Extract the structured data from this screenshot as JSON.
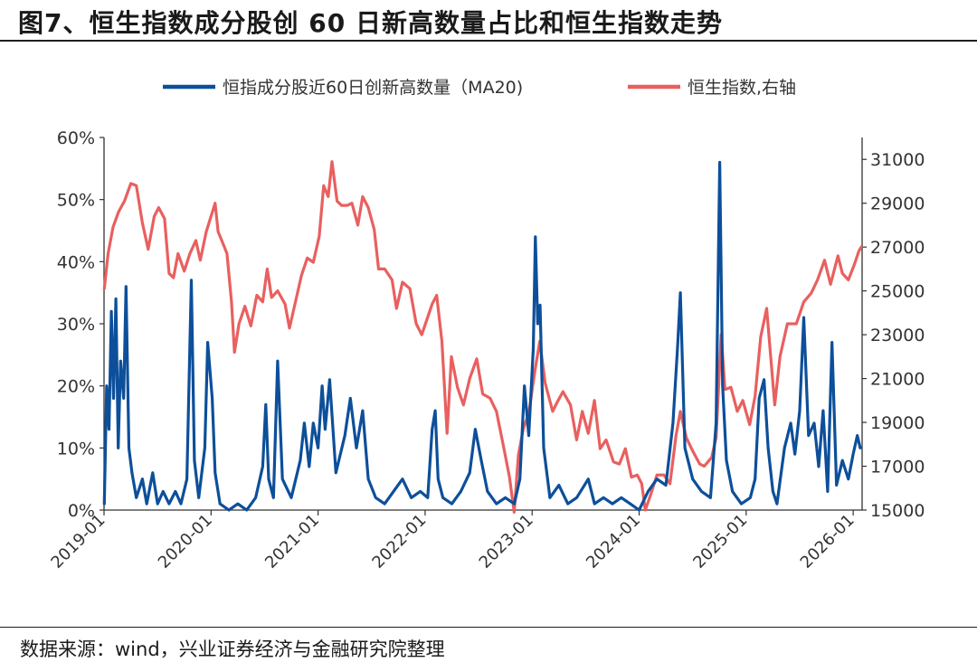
{
  "title": "图7、恒生指数成分股创 60 日新高数量占比和恒生指数走势",
  "source": "数据来源：wind，兴业证券经济与金融研究院整理",
  "colors": {
    "series1": "#0d4f9a",
    "series2": "#e8605f",
    "axis": "#333333"
  },
  "chart_data": {
    "type": "line",
    "legend_position": "top-center",
    "grid": false,
    "x_range": [
      "2019-01",
      "2026-02"
    ],
    "x_ticks": [
      "2019-01",
      "2020-01",
      "2021-01",
      "2022-01",
      "2023-01",
      "2024-01",
      "2025-01",
      "2026-01"
    ],
    "y_left": {
      "ylim": [
        0,
        60
      ],
      "ticks": [
        "0%",
        "10%",
        "20%",
        "30%",
        "40%",
        "50%",
        "60%"
      ]
    },
    "y_right": {
      "ylim": [
        15000,
        32000
      ],
      "ticks": [
        "15000",
        "17000",
        "19000",
        "21000",
        "23000",
        "25000",
        "27000",
        "29000",
        "31000"
      ]
    },
    "series": [
      {
        "name": "恒指成分股近60日创新高数量（MA20)",
        "axis": "left",
        "points": [
          [
            "2019-01-02",
            1
          ],
          [
            "2019-01-10",
            20
          ],
          [
            "2019-01-18",
            13
          ],
          [
            "2019-01-26",
            32
          ],
          [
            "2019-02-03",
            18
          ],
          [
            "2019-02-11",
            34
          ],
          [
            "2019-02-19",
            10
          ],
          [
            "2019-02-27",
            24
          ],
          [
            "2019-03-07",
            18
          ],
          [
            "2019-03-15",
            36
          ],
          [
            "2019-03-25",
            10
          ],
          [
            "2019-04-05",
            6
          ],
          [
            "2019-04-20",
            2
          ],
          [
            "2019-05-10",
            5
          ],
          [
            "2019-05-25",
            1
          ],
          [
            "2019-06-15",
            6
          ],
          [
            "2019-07-01",
            1
          ],
          [
            "2019-07-20",
            3
          ],
          [
            "2019-08-10",
            1
          ],
          [
            "2019-09-01",
            3
          ],
          [
            "2019-09-20",
            1
          ],
          [
            "2019-10-10",
            5
          ],
          [
            "2019-10-25",
            37
          ],
          [
            "2019-11-05",
            8
          ],
          [
            "2019-11-20",
            2
          ],
          [
            "2019-12-10",
            10
          ],
          [
            "2019-12-20",
            27
          ],
          [
            "2020-01-05",
            18
          ],
          [
            "2020-01-15",
            6
          ],
          [
            "2020-02-01",
            1
          ],
          [
            "2020-03-01",
            0
          ],
          [
            "2020-04-01",
            1
          ],
          [
            "2020-05-01",
            0
          ],
          [
            "2020-06-01",
            2
          ],
          [
            "2020-06-25",
            7
          ],
          [
            "2020-07-05",
            17
          ],
          [
            "2020-07-15",
            5
          ],
          [
            "2020-08-01",
            2
          ],
          [
            "2020-08-15",
            24
          ],
          [
            "2020-09-01",
            5
          ],
          [
            "2020-10-01",
            2
          ],
          [
            "2020-11-01",
            8
          ],
          [
            "2020-11-15",
            14
          ],
          [
            "2020-12-01",
            7
          ],
          [
            "2020-12-15",
            14
          ],
          [
            "2021-01-01",
            10
          ],
          [
            "2021-01-15",
            20
          ],
          [
            "2021-01-25",
            13
          ],
          [
            "2021-02-10",
            21
          ],
          [
            "2021-03-01",
            6
          ],
          [
            "2021-04-01",
            12
          ],
          [
            "2021-04-20",
            18
          ],
          [
            "2021-05-10",
            10
          ],
          [
            "2021-06-01",
            16
          ],
          [
            "2021-06-20",
            5
          ],
          [
            "2021-07-15",
            2
          ],
          [
            "2021-08-15",
            1
          ],
          [
            "2021-09-15",
            3
          ],
          [
            "2021-10-15",
            5
          ],
          [
            "2021-11-15",
            2
          ],
          [
            "2021-12-15",
            3
          ],
          [
            "2022-01-10",
            2
          ],
          [
            "2022-01-25",
            13
          ],
          [
            "2022-02-05",
            16
          ],
          [
            "2022-02-15",
            5
          ],
          [
            "2022-03-01",
            2
          ],
          [
            "2022-04-01",
            1
          ],
          [
            "2022-05-01",
            3
          ],
          [
            "2022-06-01",
            6
          ],
          [
            "2022-06-20",
            13
          ],
          [
            "2022-07-10",
            8
          ],
          [
            "2022-08-01",
            3
          ],
          [
            "2022-09-01",
            1
          ],
          [
            "2022-10-01",
            2
          ],
          [
            "2022-11-01",
            1
          ],
          [
            "2022-11-20",
            5
          ],
          [
            "2022-12-05",
            20
          ],
          [
            "2022-12-20",
            12
          ],
          [
            "2023-01-05",
            26
          ],
          [
            "2023-01-12",
            44
          ],
          [
            "2023-01-20",
            30
          ],
          [
            "2023-01-28",
            33
          ],
          [
            "2023-02-10",
            10
          ],
          [
            "2023-03-01",
            2
          ],
          [
            "2023-04-01",
            4
          ],
          [
            "2023-05-01",
            1
          ],
          [
            "2023-06-01",
            2
          ],
          [
            "2023-07-10",
            5
          ],
          [
            "2023-08-01",
            1
          ],
          [
            "2023-09-01",
            2
          ],
          [
            "2023-10-01",
            1
          ],
          [
            "2023-11-01",
            2
          ],
          [
            "2023-12-01",
            1
          ],
          [
            "2024-01-01",
            0
          ],
          [
            "2024-02-01",
            3
          ],
          [
            "2024-03-01",
            5
          ],
          [
            "2024-04-01",
            4
          ],
          [
            "2024-04-25",
            14
          ],
          [
            "2024-05-10",
            26
          ],
          [
            "2024-05-20",
            35
          ],
          [
            "2024-06-05",
            10
          ],
          [
            "2024-07-01",
            5
          ],
          [
            "2024-08-01",
            3
          ],
          [
            "2024-09-01",
            2
          ],
          [
            "2024-09-20",
            14
          ],
          [
            "2024-10-02",
            56
          ],
          [
            "2024-10-12",
            20
          ],
          [
            "2024-10-25",
            8
          ],
          [
            "2024-11-15",
            3
          ],
          [
            "2024-12-15",
            1
          ],
          [
            "2025-01-15",
            2
          ],
          [
            "2025-02-01",
            5
          ],
          [
            "2025-02-15",
            18
          ],
          [
            "2025-03-01",
            21
          ],
          [
            "2025-03-15",
            10
          ],
          [
            "2025-04-01",
            3
          ],
          [
            "2025-04-15",
            1
          ],
          [
            "2025-05-10",
            10
          ],
          [
            "2025-06-01",
            14
          ],
          [
            "2025-06-15",
            9
          ],
          [
            "2025-07-01",
            16
          ],
          [
            "2025-07-15",
            31
          ],
          [
            "2025-08-01",
            12
          ],
          [
            "2025-08-20",
            14
          ],
          [
            "2025-09-05",
            7
          ],
          [
            "2025-09-20",
            16
          ],
          [
            "2025-10-05",
            3
          ],
          [
            "2025-10-20",
            27
          ],
          [
            "2025-11-05",
            4
          ],
          [
            "2025-11-25",
            8
          ],
          [
            "2025-12-15",
            5
          ],
          [
            "2026-01-01",
            9
          ],
          [
            "2026-01-15",
            12
          ],
          [
            "2026-01-25",
            10
          ]
        ]
      },
      {
        "name": "恒生指数,右轴",
        "axis": "right",
        "points": [
          [
            "2019-01-02",
            25100
          ],
          [
            "2019-01-15",
            26700
          ],
          [
            "2019-02-01",
            27900
          ],
          [
            "2019-02-20",
            28600
          ],
          [
            "2019-03-10",
            29100
          ],
          [
            "2019-04-01",
            29900
          ],
          [
            "2019-04-20",
            29800
          ],
          [
            "2019-05-10",
            28100
          ],
          [
            "2019-05-30",
            26900
          ],
          [
            "2019-06-20",
            28400
          ],
          [
            "2019-07-05",
            28800
          ],
          [
            "2019-07-25",
            28300
          ],
          [
            "2019-08-10",
            25800
          ],
          [
            "2019-08-25",
            25600
          ],
          [
            "2019-09-10",
            26700
          ],
          [
            "2019-10-01",
            25900
          ],
          [
            "2019-10-20",
            26700
          ],
          [
            "2019-11-10",
            27300
          ],
          [
            "2019-11-25",
            26400
          ],
          [
            "2019-12-15",
            27700
          ],
          [
            "2020-01-15",
            29000
          ],
          [
            "2020-01-25",
            27700
          ],
          [
            "2020-02-10",
            27200
          ],
          [
            "2020-02-25",
            26700
          ],
          [
            "2020-03-10",
            24500
          ],
          [
            "2020-03-20",
            22200
          ],
          [
            "2020-04-05",
            23500
          ],
          [
            "2020-04-25",
            24300
          ],
          [
            "2020-05-15",
            23400
          ],
          [
            "2020-06-05",
            24800
          ],
          [
            "2020-06-25",
            24500
          ],
          [
            "2020-07-10",
            26000
          ],
          [
            "2020-07-25",
            24700
          ],
          [
            "2020-08-15",
            25000
          ],
          [
            "2020-09-10",
            24400
          ],
          [
            "2020-09-25",
            23300
          ],
          [
            "2020-10-15",
            24500
          ],
          [
            "2020-11-05",
            25700
          ],
          [
            "2020-11-25",
            26500
          ],
          [
            "2020-12-15",
            26300
          ],
          [
            "2021-01-05",
            27500
          ],
          [
            "2021-01-20",
            29800
          ],
          [
            "2021-02-05",
            29300
          ],
          [
            "2021-02-18",
            30900
          ],
          [
            "2021-03-05",
            29100
          ],
          [
            "2021-03-20",
            28900
          ],
          [
            "2021-04-10",
            28900
          ],
          [
            "2021-04-25",
            29000
          ],
          [
            "2021-05-15",
            28000
          ],
          [
            "2021-06-01",
            29300
          ],
          [
            "2021-06-20",
            28800
          ],
          [
            "2021-07-10",
            27800
          ],
          [
            "2021-07-25",
            26000
          ],
          [
            "2021-08-15",
            26000
          ],
          [
            "2021-09-10",
            25500
          ],
          [
            "2021-09-25",
            24200
          ],
          [
            "2021-10-15",
            25400
          ],
          [
            "2021-11-10",
            25100
          ],
          [
            "2021-12-01",
            23500
          ],
          [
            "2021-12-20",
            23000
          ],
          [
            "2022-01-10",
            23800
          ],
          [
            "2022-01-25",
            24400
          ],
          [
            "2022-02-10",
            24800
          ],
          [
            "2022-02-28",
            22700
          ],
          [
            "2022-03-15",
            18500
          ],
          [
            "2022-03-30",
            22000
          ],
          [
            "2022-04-20",
            20600
          ],
          [
            "2022-05-10",
            19800
          ],
          [
            "2022-06-01",
            21000
          ],
          [
            "2022-06-25",
            21900
          ],
          [
            "2022-07-15",
            20300
          ],
          [
            "2022-08-10",
            20100
          ],
          [
            "2022-09-01",
            19500
          ],
          [
            "2022-09-25",
            17900
          ],
          [
            "2022-10-15",
            16500
          ],
          [
            "2022-10-31",
            14900
          ],
          [
            "2022-11-15",
            17500
          ],
          [
            "2022-12-01",
            18700
          ],
          [
            "2022-12-20",
            19400
          ],
          [
            "2023-01-10",
            21300
          ],
          [
            "2023-01-27",
            22700
          ],
          [
            "2023-02-15",
            20800
          ],
          [
            "2023-03-10",
            19500
          ],
          [
            "2023-03-25",
            19900
          ],
          [
            "2023-04-15",
            20400
          ],
          [
            "2023-05-10",
            19800
          ],
          [
            "2023-05-31",
            18200
          ],
          [
            "2023-06-20",
            19500
          ],
          [
            "2023-07-10",
            18500
          ],
          [
            "2023-07-31",
            20000
          ],
          [
            "2023-08-20",
            17800
          ],
          [
            "2023-09-10",
            18200
          ],
          [
            "2023-10-05",
            17200
          ],
          [
            "2023-10-25",
            17100
          ],
          [
            "2023-11-15",
            17800
          ],
          [
            "2023-12-05",
            16500
          ],
          [
            "2023-12-25",
            16600
          ],
          [
            "2024-01-10",
            16200
          ],
          [
            "2024-01-22",
            15000
          ],
          [
            "2024-02-10",
            15700
          ],
          [
            "2024-03-01",
            16600
          ],
          [
            "2024-03-25",
            16600
          ],
          [
            "2024-04-15",
            16200
          ],
          [
            "2024-05-05",
            18400
          ],
          [
            "2024-05-20",
            19500
          ],
          [
            "2024-06-10",
            18300
          ],
          [
            "2024-07-01",
            17700
          ],
          [
            "2024-07-25",
            17100
          ],
          [
            "2024-08-10",
            17000
          ],
          [
            "2024-09-05",
            17400
          ],
          [
            "2024-09-20",
            18300
          ],
          [
            "2024-10-07",
            23000
          ],
          [
            "2024-10-20",
            20500
          ],
          [
            "2024-11-10",
            20600
          ],
          [
            "2024-12-01",
            19500
          ],
          [
            "2024-12-20",
            20000
          ],
          [
            "2025-01-13",
            18900
          ],
          [
            "2025-02-01",
            20200
          ],
          [
            "2025-02-20",
            22900
          ],
          [
            "2025-03-10",
            24200
          ],
          [
            "2025-04-07",
            19800
          ],
          [
            "2025-04-25",
            22000
          ],
          [
            "2025-05-20",
            23500
          ],
          [
            "2025-06-20",
            23500
          ],
          [
            "2025-07-15",
            24500
          ],
          [
            "2025-08-10",
            24900
          ],
          [
            "2025-09-01",
            25500
          ],
          [
            "2025-09-25",
            26400
          ],
          [
            "2025-10-15",
            25300
          ],
          [
            "2025-11-10",
            26600
          ],
          [
            "2025-11-25",
            25800
          ],
          [
            "2025-12-15",
            25500
          ],
          [
            "2026-01-05",
            26200
          ],
          [
            "2026-01-20",
            26800
          ],
          [
            "2026-01-28",
            27000
          ]
        ]
      }
    ]
  }
}
